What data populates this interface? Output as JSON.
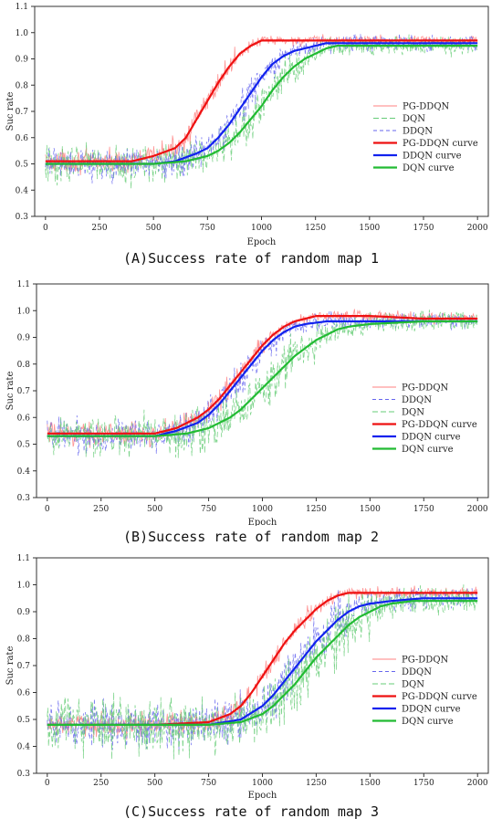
{
  "chart_data": [
    {
      "type": "line",
      "caption": "(A)Success rate of random map 1",
      "xlabel": "Epoch",
      "ylabel": "Suc rate",
      "xlim": [
        -50,
        2050
      ],
      "ylim": [
        0.3,
        1.1
      ],
      "xticks": [
        0,
        250,
        500,
        750,
        1000,
        1250,
        1500,
        1750,
        2000
      ],
      "yticks": [
        0.3,
        0.4,
        0.5,
        0.6,
        0.7,
        0.8,
        0.9,
        1.0,
        1.1
      ],
      "legend_position": "right",
      "legend": [
        "PG-DDQN",
        "DQN",
        "DDQN",
        "PG-DDQN curve",
        "DDQN curve",
        "DQN curve"
      ],
      "noisy_series": [
        {
          "name": "PG-DDQN",
          "color": "#ff8080",
          "dash": "",
          "noise": 0.02,
          "smooth_ref": 0
        },
        {
          "name": "DQN",
          "color": "#66cc77",
          "dash": "6,3",
          "noise": 0.035,
          "smooth_ref": 2
        },
        {
          "name": "DDQN",
          "color": "#6666ee",
          "dash": "4,3",
          "noise": 0.03,
          "smooth_ref": 1
        }
      ],
      "series": [
        {
          "name": "PG-DDQN curve",
          "color": "#ee1111",
          "x": [
            0,
            250,
            400,
            500,
            600,
            650,
            700,
            750,
            800,
            850,
            900,
            950,
            1000,
            1050,
            1100,
            1250,
            1500,
            1750,
            2000
          ],
          "values": [
            0.51,
            0.51,
            0.51,
            0.53,
            0.56,
            0.6,
            0.67,
            0.74,
            0.81,
            0.87,
            0.92,
            0.95,
            0.97,
            0.97,
            0.97,
            0.97,
            0.97,
            0.97,
            0.97
          ]
        },
        {
          "name": "DDQN curve",
          "color": "#1122ee",
          "x": [
            0,
            250,
            500,
            600,
            700,
            750,
            800,
            850,
            900,
            950,
            1000,
            1050,
            1100,
            1150,
            1200,
            1250,
            1300,
            1500,
            1750,
            2000
          ],
          "values": [
            0.5,
            0.5,
            0.5,
            0.51,
            0.54,
            0.56,
            0.6,
            0.65,
            0.71,
            0.77,
            0.83,
            0.88,
            0.91,
            0.93,
            0.94,
            0.95,
            0.96,
            0.96,
            0.96,
            0.96
          ]
        },
        {
          "name": "DQN curve",
          "color": "#22bb33",
          "x": [
            0,
            250,
            500,
            650,
            750,
            800,
            850,
            900,
            950,
            1000,
            1050,
            1100,
            1150,
            1200,
            1250,
            1300,
            1350,
            1500,
            1750,
            2000
          ],
          "values": [
            0.5,
            0.5,
            0.5,
            0.51,
            0.53,
            0.55,
            0.58,
            0.62,
            0.67,
            0.72,
            0.78,
            0.83,
            0.87,
            0.9,
            0.92,
            0.94,
            0.95,
            0.95,
            0.95,
            0.95
          ]
        }
      ]
    },
    {
      "type": "line",
      "caption": "(B)Success rate of random map 2",
      "xlabel": "Epoch",
      "ylabel": "Suc rate",
      "xlim": [
        -50,
        2050
      ],
      "ylim": [
        0.3,
        1.1
      ],
      "xticks": [
        0,
        250,
        500,
        750,
        1000,
        1250,
        1500,
        1750,
        2000
      ],
      "yticks": [
        0.3,
        0.4,
        0.5,
        0.6,
        0.7,
        0.8,
        0.9,
        1.0,
        1.1
      ],
      "legend_position": "right",
      "legend": [
        "PG-DDQN",
        "DDQN",
        "DQN",
        "PG-DDQN curve",
        "DDQN curve",
        "DQN curve"
      ],
      "noisy_series": [
        {
          "name": "PG-DDQN",
          "color": "#ff8080",
          "dash": "",
          "noise": 0.02,
          "smooth_ref": 0
        },
        {
          "name": "DDQN",
          "color": "#6666ee",
          "dash": "4,3",
          "noise": 0.03,
          "smooth_ref": 1
        },
        {
          "name": "DQN",
          "color": "#66cc77",
          "dash": "6,3",
          "noise": 0.04,
          "smooth_ref": 2
        }
      ],
      "series": [
        {
          "name": "PG-DDQN curve",
          "color": "#ee1111",
          "x": [
            0,
            250,
            500,
            600,
            700,
            750,
            800,
            850,
            900,
            950,
            1000,
            1050,
            1100,
            1150,
            1200,
            1250,
            1500,
            1750,
            2000
          ],
          "values": [
            0.54,
            0.54,
            0.54,
            0.56,
            0.6,
            0.63,
            0.67,
            0.72,
            0.77,
            0.82,
            0.87,
            0.91,
            0.94,
            0.96,
            0.97,
            0.98,
            0.98,
            0.97,
            0.97
          ]
        },
        {
          "name": "DDQN curve",
          "color": "#1122ee",
          "x": [
            0,
            250,
            500,
            600,
            700,
            750,
            800,
            850,
            900,
            950,
            1000,
            1050,
            1100,
            1150,
            1200,
            1300,
            1500,
            1750,
            2000
          ],
          "values": [
            0.53,
            0.53,
            0.53,
            0.55,
            0.58,
            0.61,
            0.65,
            0.7,
            0.75,
            0.8,
            0.85,
            0.89,
            0.92,
            0.94,
            0.95,
            0.96,
            0.96,
            0.96,
            0.96
          ]
        },
        {
          "name": "DQN curve",
          "color": "#22bb33",
          "x": [
            0,
            250,
            500,
            650,
            750,
            800,
            850,
            900,
            950,
            1000,
            1050,
            1100,
            1150,
            1200,
            1250,
            1300,
            1350,
            1400,
            1500,
            1750,
            2000
          ],
          "values": [
            0.53,
            0.53,
            0.53,
            0.54,
            0.56,
            0.58,
            0.6,
            0.63,
            0.67,
            0.71,
            0.75,
            0.79,
            0.83,
            0.86,
            0.89,
            0.91,
            0.93,
            0.94,
            0.95,
            0.96,
            0.96
          ]
        }
      ]
    },
    {
      "type": "line",
      "caption": "(C)Success rate of random map 3",
      "xlabel": "Epoch",
      "ylabel": "Suc rate",
      "xlim": [
        -50,
        2050
      ],
      "ylim": [
        0.3,
        1.1
      ],
      "xticks": [
        0,
        250,
        500,
        750,
        1000,
        1250,
        1500,
        1750,
        2000
      ],
      "yticks": [
        0.3,
        0.4,
        0.5,
        0.6,
        0.7,
        0.8,
        0.9,
        1.0,
        1.1
      ],
      "legend_position": "right",
      "legend": [
        "PG-DDQN",
        "DDQN",
        "DQN",
        "PG-DDQN curve",
        "DDQN curve",
        "DQN curve"
      ],
      "noisy_series": [
        {
          "name": "PG-DDQN",
          "color": "#ff8080",
          "dash": "",
          "noise": 0.02,
          "smooth_ref": 0
        },
        {
          "name": "DDQN",
          "color": "#6666ee",
          "dash": "4,3",
          "noise": 0.04,
          "smooth_ref": 1
        },
        {
          "name": "DQN",
          "color": "#66cc77",
          "dash": "6,3",
          "noise": 0.05,
          "smooth_ref": 2
        }
      ],
      "series": [
        {
          "name": "PG-DDQN curve",
          "color": "#ee1111",
          "x": [
            0,
            250,
            500,
            750,
            850,
            900,
            950,
            1000,
            1050,
            1100,
            1150,
            1200,
            1250,
            1300,
            1350,
            1400,
            1500,
            1750,
            2000
          ],
          "values": [
            0.48,
            0.48,
            0.48,
            0.49,
            0.52,
            0.55,
            0.6,
            0.66,
            0.72,
            0.78,
            0.83,
            0.87,
            0.91,
            0.94,
            0.96,
            0.97,
            0.97,
            0.97,
            0.97
          ]
        },
        {
          "name": "DDQN curve",
          "color": "#1122ee",
          "x": [
            0,
            250,
            500,
            750,
            900,
            1000,
            1050,
            1100,
            1150,
            1200,
            1250,
            1300,
            1350,
            1400,
            1450,
            1500,
            1600,
            1750,
            2000
          ],
          "values": [
            0.48,
            0.48,
            0.48,
            0.48,
            0.5,
            0.55,
            0.59,
            0.64,
            0.69,
            0.74,
            0.79,
            0.83,
            0.87,
            0.9,
            0.92,
            0.93,
            0.94,
            0.95,
            0.95
          ]
        },
        {
          "name": "DQN curve",
          "color": "#22bb33",
          "x": [
            0,
            250,
            500,
            750,
            900,
            1000,
            1050,
            1100,
            1150,
            1200,
            1250,
            1300,
            1350,
            1400,
            1450,
            1500,
            1550,
            1600,
            1700,
            1800,
            2000
          ],
          "values": [
            0.48,
            0.48,
            0.48,
            0.48,
            0.49,
            0.52,
            0.55,
            0.59,
            0.63,
            0.68,
            0.73,
            0.77,
            0.81,
            0.85,
            0.88,
            0.9,
            0.92,
            0.93,
            0.94,
            0.94,
            0.94
          ]
        }
      ]
    }
  ]
}
